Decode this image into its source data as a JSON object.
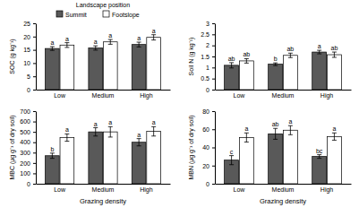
{
  "chart_data": [
    {
      "type": "bar",
      "ylabel": "SOC (g kg⁻¹)",
      "categories": [
        "Low",
        "Medium",
        "High"
      ],
      "legend": "top",
      "legend_title": "Landscape position",
      "ylim": [
        0,
        25
      ],
      "yticks": [
        0,
        5,
        10,
        15,
        20,
        25
      ],
      "series": [
        {
          "name": "Summit",
          "color": "#595959",
          "values": [
            15.5,
            15.7,
            17.0
          ],
          "errors": [
            0.7,
            0.8,
            0.9
          ],
          "letters": [
            "a",
            "a",
            "a"
          ]
        },
        {
          "name": "Footslope",
          "color": "#ffffff",
          "values": [
            16.8,
            18.0,
            19.7
          ],
          "errors": [
            0.9,
            0.9,
            1.0
          ],
          "letters": [
            "a",
            "a",
            "a"
          ]
        }
      ]
    },
    {
      "type": "bar",
      "ylabel": "Soil N (g kg⁻¹)",
      "categories": [
        "Low",
        "Medium",
        "High"
      ],
      "ylim": [
        0,
        3
      ],
      "yticks": [
        0,
        0.5,
        1,
        1.5,
        2,
        2.5,
        3
      ],
      "series": [
        {
          "name": "Summit",
          "color": "#595959",
          "values": [
            1.1,
            1.15,
            1.7
          ],
          "errors": [
            0.12,
            0.06,
            0.08
          ],
          "letters": [
            "ab",
            "b",
            "a"
          ]
        },
        {
          "name": "Footslope",
          "color": "#ffffff",
          "values": [
            1.3,
            1.55,
            1.58
          ],
          "errors": [
            0.1,
            0.1,
            0.12
          ],
          "letters": [
            "ab",
            "ab",
            "ab"
          ]
        }
      ]
    },
    {
      "type": "bar",
      "ylabel": "MBC (μg g⁻¹ of dry soil)",
      "xlabel": "Grazing density",
      "categories": [
        "Low",
        "Medium",
        "High"
      ],
      "ylim": [
        0,
        700
      ],
      "yticks": [
        0,
        100,
        200,
        300,
        400,
        500,
        600,
        700
      ],
      "series": [
        {
          "name": "Summit",
          "color": "#595959",
          "values": [
            270,
            500,
            400
          ],
          "errors": [
            25,
            40,
            35
          ],
          "letters": [
            "b",
            "a",
            "a"
          ]
        },
        {
          "name": "Footslope",
          "color": "#ffffff",
          "values": [
            445,
            500,
            505
          ],
          "errors": [
            35,
            50,
            45
          ],
          "letters": [
            "a",
            "a",
            "a"
          ]
        }
      ]
    },
    {
      "type": "bar",
      "ylabel": "MBN (μg g⁻¹ of dry soil)",
      "xlabel": "Grazing density",
      "categories": [
        "Low",
        "Medium",
        "High"
      ],
      "ylim": [
        0,
        80
      ],
      "yticks": [
        0,
        20,
        40,
        60,
        80
      ],
      "series": [
        {
          "name": "Summit",
          "color": "#595959",
          "values": [
            26,
            55,
            30
          ],
          "errors": [
            5,
            6,
            2
          ],
          "letters": [
            "c",
            "ab",
            "bc"
          ]
        },
        {
          "name": "Footslope",
          "color": "#ffffff",
          "values": [
            51,
            59,
            52
          ],
          "errors": [
            5,
            5,
            4
          ],
          "letters": [
            "a",
            "a",
            "a"
          ]
        }
      ]
    }
  ]
}
